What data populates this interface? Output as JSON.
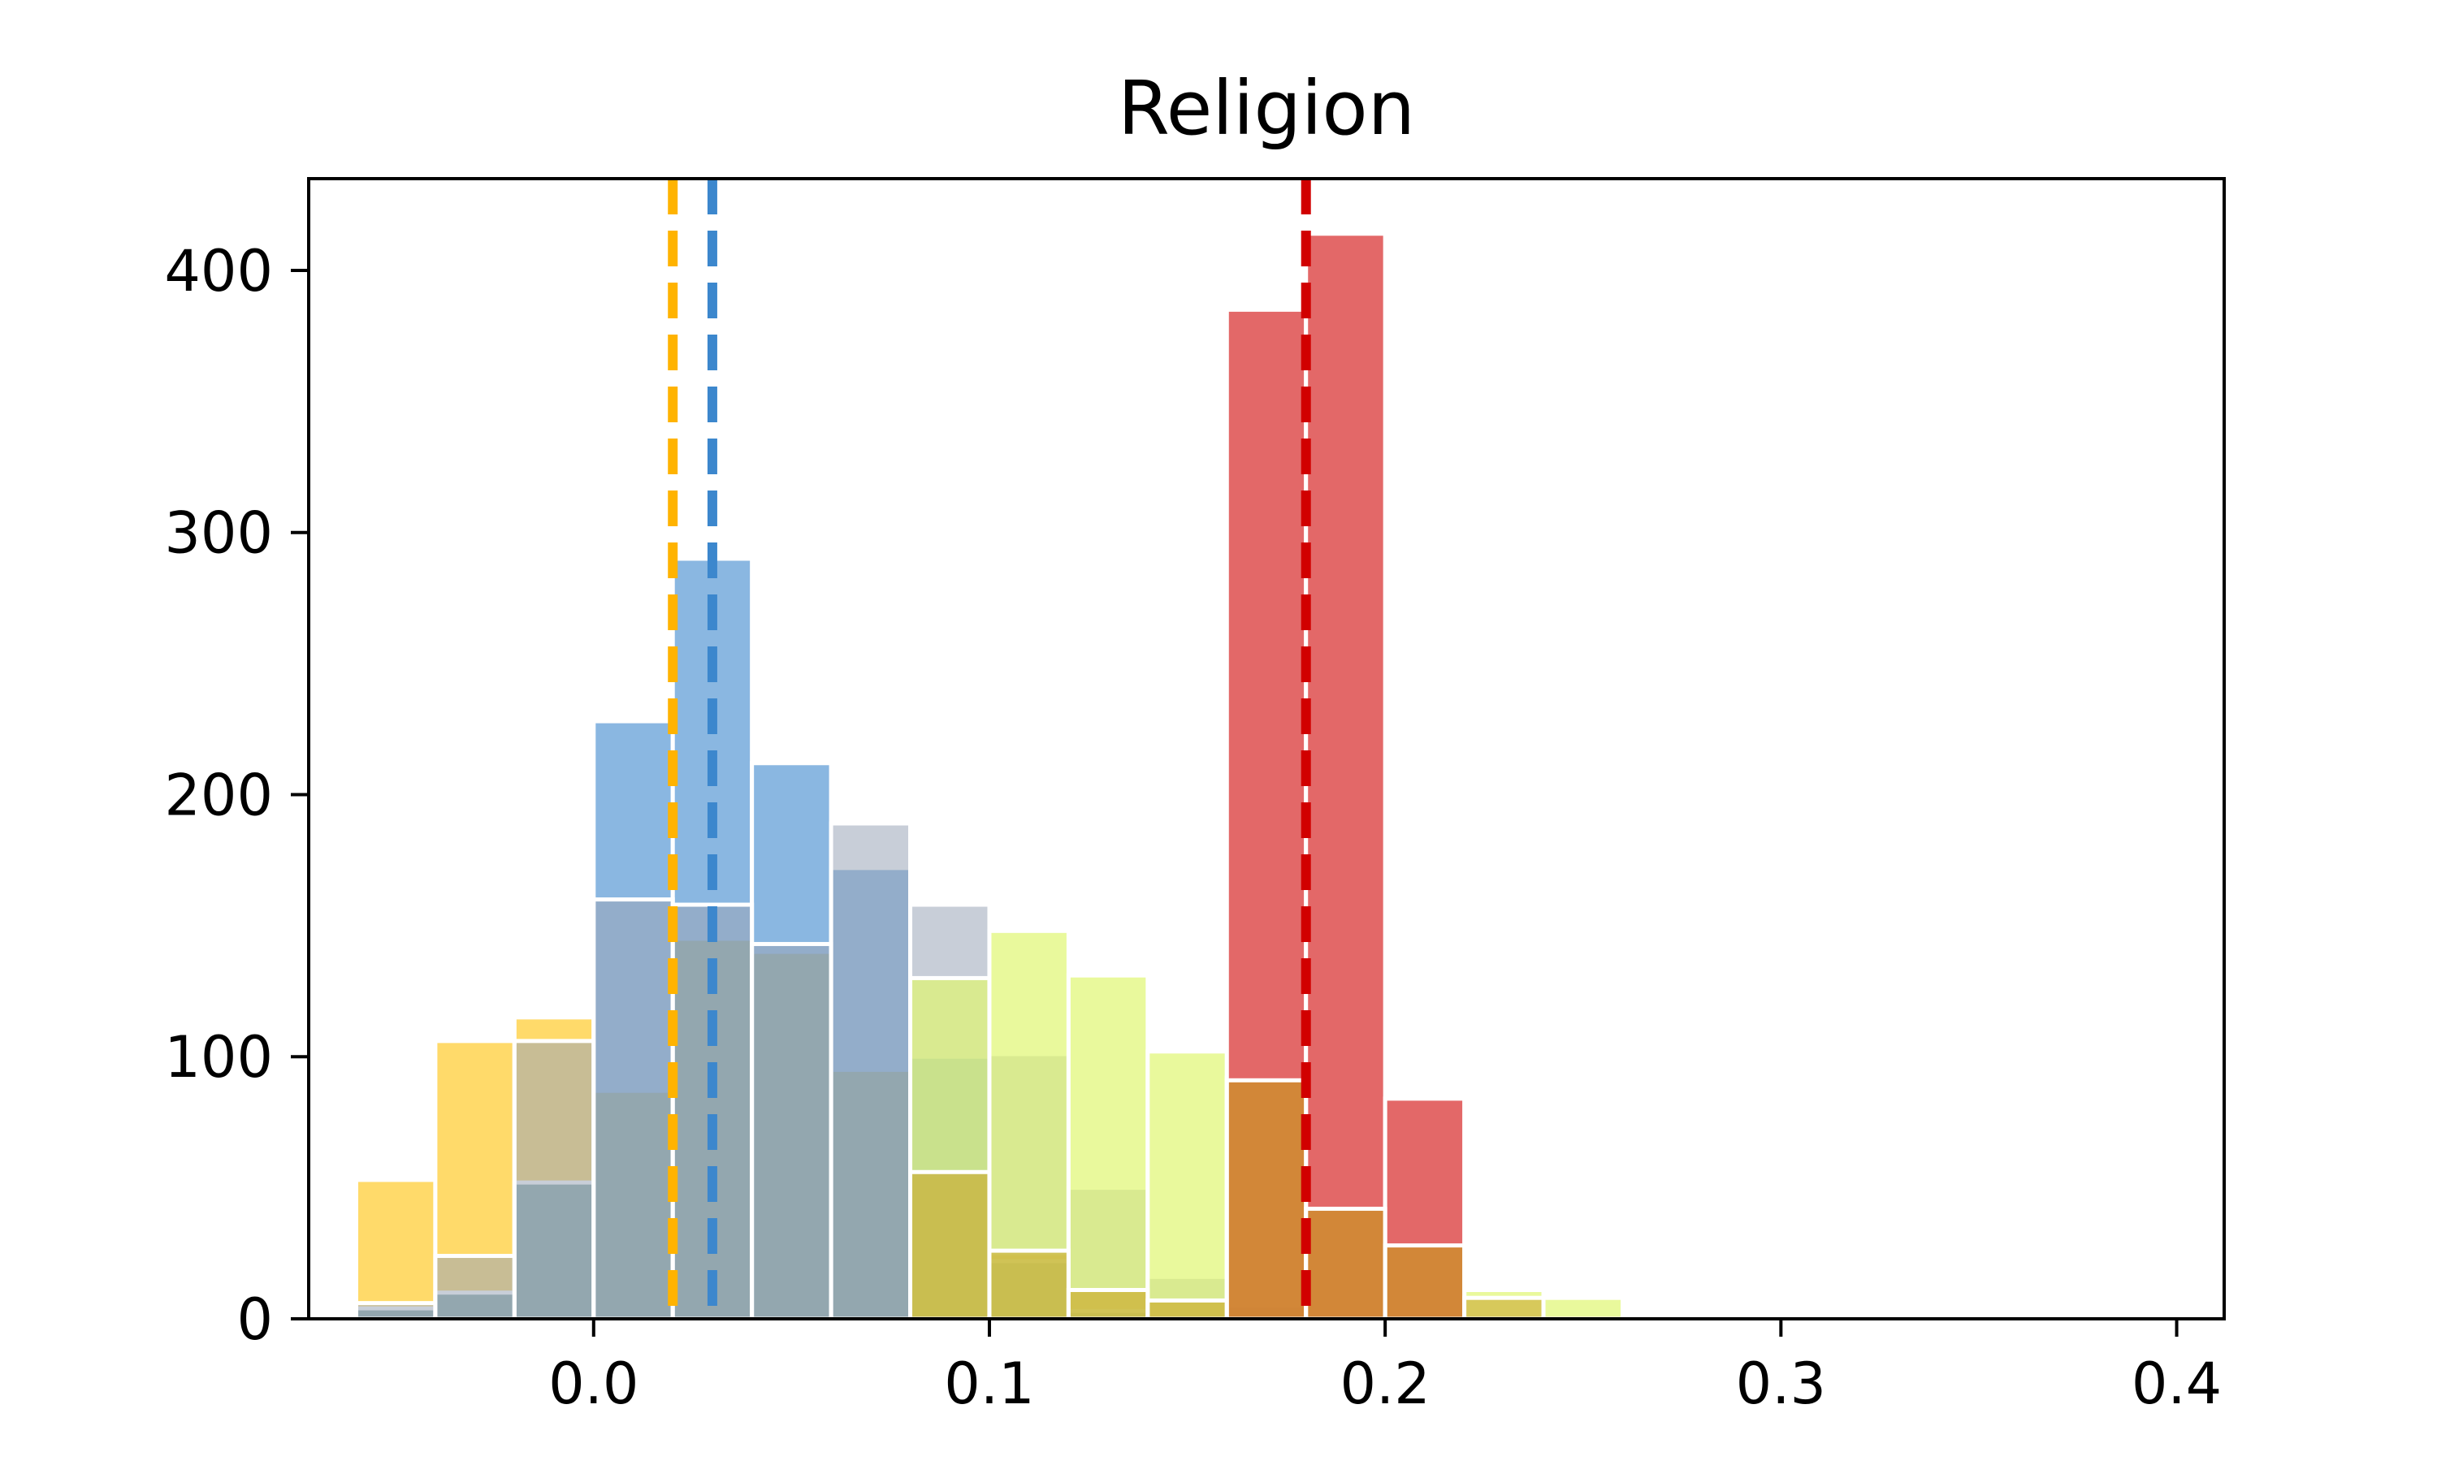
{
  "chart_data": {
    "type": "bar",
    "title": "Religion",
    "xlabel": "",
    "ylabel": "",
    "xlim": [
      -0.072,
      0.412
    ],
    "ylim": [
      0,
      435
    ],
    "xticks": [
      0.0,
      0.1,
      0.2,
      0.3,
      0.4
    ],
    "xtick_labels": [
      "0.0",
      "0.1",
      "0.2",
      "0.3",
      "0.4"
    ],
    "yticks": [
      0,
      100,
      200,
      300,
      400
    ],
    "ytick_labels": [
      "0",
      "100",
      "200",
      "300",
      "400"
    ],
    "bin_width": 0.02,
    "legend": "none",
    "grid": false,
    "series": [
      {
        "color": "#ffc107",
        "opacity": 0.6,
        "bins": [
          [
            -0.05,
            53
          ],
          [
            -0.03,
            106
          ],
          [
            -0.01,
            115
          ],
          [
            0.01,
            87
          ],
          [
            0.03,
            145
          ],
          [
            0.05,
            140
          ],
          [
            0.07,
            95
          ],
          [
            0.09,
            55
          ],
          [
            0.11,
            25
          ],
          [
            0.13,
            11
          ],
          [
            0.15,
            7
          ],
          [
            0.17,
            4
          ]
        ]
      },
      {
        "color": "#3c87cd",
        "opacity": 0.6,
        "bins": [
          [
            -0.05,
            4
          ],
          [
            -0.03,
            10
          ],
          [
            -0.01,
            52
          ],
          [
            0.01,
            228
          ],
          [
            0.03,
            290
          ],
          [
            0.05,
            212
          ],
          [
            0.07,
            172
          ],
          [
            0.09,
            100
          ],
          [
            0.11,
            22
          ],
          [
            0.13,
            3
          ]
        ]
      },
      {
        "color": "#9aa6b8",
        "opacity": 0.55,
        "bins": [
          [
            -0.05,
            6
          ],
          [
            -0.03,
            24
          ],
          [
            -0.01,
            106
          ],
          [
            0.01,
            160
          ],
          [
            0.03,
            158
          ],
          [
            0.05,
            143
          ],
          [
            0.07,
            189
          ],
          [
            0.09,
            158
          ],
          [
            0.11,
            101
          ],
          [
            0.13,
            50
          ],
          [
            0.15,
            16
          ],
          [
            0.17,
            5
          ]
        ]
      },
      {
        "color": "#e0f772",
        "opacity": 0.7,
        "bins": [
          [
            0.09,
            130
          ],
          [
            0.11,
            148
          ],
          [
            0.13,
            131
          ],
          [
            0.15,
            102
          ],
          [
            0.17,
            92
          ],
          [
            0.19,
            43
          ],
          [
            0.21,
            29
          ],
          [
            0.23,
            11
          ],
          [
            0.25,
            8
          ],
          [
            0.27,
            1
          ]
        ]
      },
      {
        "color": "#d93535",
        "opacity": 0.75,
        "bins": [
          [
            0.17,
            385
          ],
          [
            0.19,
            414
          ],
          [
            0.21,
            84
          ]
        ]
      },
      {
        "color": "#c9a227",
        "opacity": 0.55,
        "bins": [
          [
            0.09,
            56
          ],
          [
            0.11,
            26
          ],
          [
            0.13,
            11
          ],
          [
            0.15,
            7
          ],
          [
            0.17,
            91
          ],
          [
            0.19,
            42
          ],
          [
            0.21,
            28
          ],
          [
            0.23,
            8
          ]
        ]
      }
    ],
    "vlines": [
      {
        "x": 0.02,
        "color": "#ffb300"
      },
      {
        "x": 0.03,
        "color": "#3c87cd"
      },
      {
        "x": 0.18,
        "color": "#d10000"
      }
    ]
  }
}
